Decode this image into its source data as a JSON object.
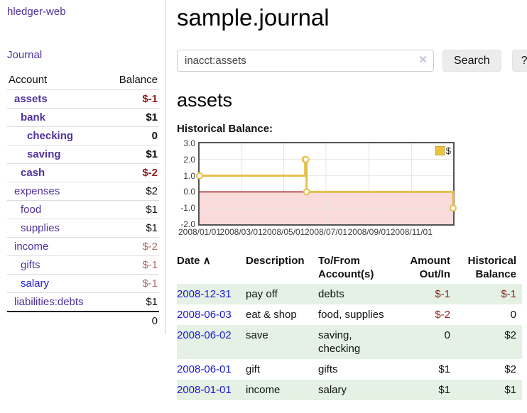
{
  "app": {
    "brand": "hledger-web",
    "nav_journal": "Journal"
  },
  "sidebar": {
    "account_header": "Account",
    "balance_header": "Balance",
    "accounts": [
      {
        "name": "assets",
        "balance": "$-1",
        "level": 1,
        "bold": true,
        "balance_style": "neg",
        "link_style": "visited"
      },
      {
        "name": "bank",
        "balance": "$1",
        "level": 2,
        "bold": true,
        "balance_style": "pos",
        "link_style": "visited"
      },
      {
        "name": "checking",
        "balance": "0",
        "level": 3,
        "bold": true,
        "balance_style": "pos",
        "link_style": "visited"
      },
      {
        "name": "saving",
        "balance": "$1",
        "level": 3,
        "bold": true,
        "balance_style": "pos",
        "link_style": "visited"
      },
      {
        "name": "cash",
        "balance": "$-2",
        "level": 2,
        "bold": true,
        "balance_style": "neg",
        "link_style": "visited"
      },
      {
        "name": "expenses",
        "balance": "$2",
        "level": 1,
        "bold": false,
        "balance_style": "pos",
        "link_style": "visited"
      },
      {
        "name": "food",
        "balance": "$1",
        "level": 2,
        "bold": false,
        "balance_style": "pos",
        "link_style": "visited"
      },
      {
        "name": "supplies",
        "balance": "$1",
        "level": 2,
        "bold": false,
        "balance_style": "pos",
        "link_style": "visited"
      },
      {
        "name": "income",
        "balance": "$-2",
        "level": 1,
        "bold": false,
        "balance_style": "negl",
        "link_style": "visited"
      },
      {
        "name": "gifts",
        "balance": "$-1",
        "level": 2,
        "bold": false,
        "balance_style": "negl",
        "link_style": "visited"
      },
      {
        "name": "salary",
        "balance": "$-1",
        "level": 2,
        "bold": false,
        "balance_style": "negl",
        "link_style": "new"
      },
      {
        "name": "liabilities:debts",
        "balance": "$1",
        "level": 1,
        "bold": false,
        "balance_style": "pos",
        "link_style": "visited"
      }
    ],
    "total": "0"
  },
  "main": {
    "title": "sample.journal",
    "search": {
      "value": "inacct:assets",
      "clear_icon": "✕",
      "button": "Search",
      "help": "?"
    },
    "account_heading": "assets",
    "chart_label": "Historical Balance:"
  },
  "chart_data": {
    "type": "line",
    "title": "Historical Balance",
    "step": "after",
    "series": [
      {
        "name": "$",
        "color": "#e4bf4b",
        "points": [
          [
            "2008-01-01",
            1
          ],
          [
            "2008-06-01",
            2
          ],
          [
            "2008-06-02",
            2
          ],
          [
            "2008-06-03",
            0
          ],
          [
            "2008-12-31",
            -1
          ]
        ]
      }
    ],
    "x_range": [
      "2008-01-01",
      "2008-12-31"
    ],
    "x_ticks": [
      "2008/01/01",
      "2008/03/01",
      "2008/05/01",
      "2008/07/01",
      "2008/09/01",
      "2008/11/01"
    ],
    "y_ticks": [
      3.0,
      2.0,
      1.0,
      0.0,
      -1.0,
      -2.0
    ],
    "ylim": [
      -2,
      3
    ],
    "grid": true,
    "legend": {
      "label": "$",
      "position": "top-right"
    },
    "colors": {
      "negative_region": "#f9dbdb",
      "zero_line": "#8b0000",
      "gridline": "#e4e4e4",
      "marker_fill": "#ffffff"
    }
  },
  "table": {
    "headers": {
      "date": "Date",
      "sort_icon": "∧",
      "description": "Description",
      "tofrom": "To/From Account(s)",
      "amount": "Amount Out/In",
      "balance": "Historical Balance"
    },
    "rows": [
      {
        "date": "2008-12-31",
        "description": "pay off",
        "accounts": "debts",
        "amount": "$-1",
        "balance": "$-1",
        "amount_neg": true,
        "balance_neg": true
      },
      {
        "date": "2008-06-03",
        "description": "eat & shop",
        "accounts": "food, supplies",
        "amount": "$-2",
        "balance": "0",
        "amount_neg": true,
        "balance_neg": false
      },
      {
        "date": "2008-06-02",
        "description": "save",
        "accounts": "saving, checking",
        "amount": "0",
        "balance": "$2",
        "amount_neg": false,
        "balance_neg": false
      },
      {
        "date": "2008-06-01",
        "description": "gift",
        "accounts": "gifts",
        "amount": "$1",
        "balance": "$2",
        "amount_neg": false,
        "balance_neg": false
      },
      {
        "date": "2008-01-01",
        "description": "income",
        "accounts": "salary",
        "amount": "$1",
        "balance": "$1",
        "amount_neg": false,
        "balance_neg": false
      }
    ]
  }
}
